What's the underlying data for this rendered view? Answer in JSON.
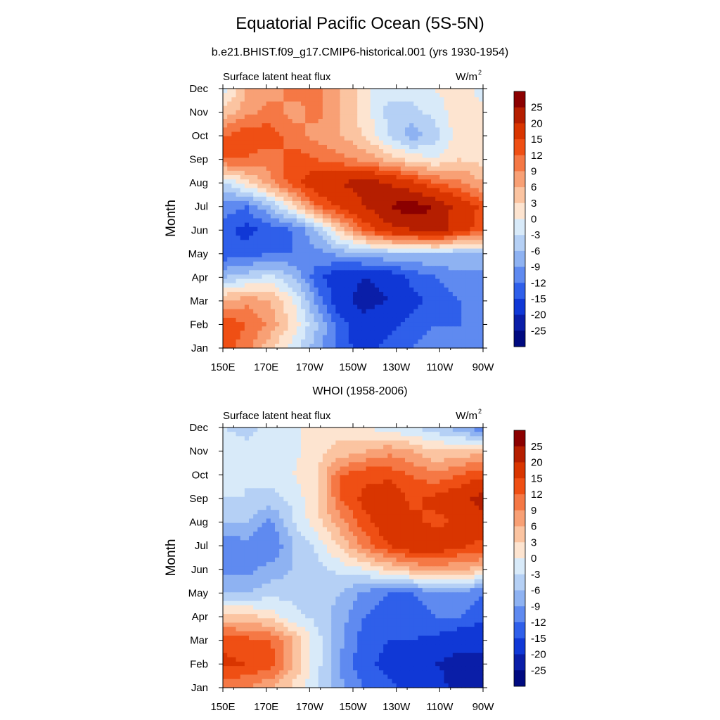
{
  "page": {
    "title": "Equatorial Pacific Ocean (5S-5N)",
    "subtitle": "b.e21.BHIST.f09_g17.CMIP6-historical.001 (yrs 1930-1954)"
  },
  "colorbar": {
    "levels": [
      "25",
      "20",
      "15",
      "12",
      "9",
      "6",
      "3",
      "0",
      "-3",
      "-6",
      "-9",
      "-12",
      "-15",
      "-20",
      "-25"
    ],
    "colors": [
      "#8b0000",
      "#b51e00",
      "#d93500",
      "#ef4f14",
      "#f57845",
      "#f8a075",
      "#fbc4a1",
      "#fde4d0",
      "#d8eaf9",
      "#b5d0f5",
      "#8eb2f2",
      "#5f8af0",
      "#2f5fea",
      "#1038d6",
      "#0a1ea8",
      "#000a80"
    ]
  },
  "chart_data": [
    {
      "type": "heatmap",
      "subtitle": "",
      "left_label": "Surface latent heat flux",
      "right_label": "W/m",
      "right_label_sup": "2",
      "ylabel": "Month",
      "x_ticks": [
        "150E",
        "170E",
        "170W",
        "150W",
        "130W",
        "110W",
        "90W"
      ],
      "y_ticks": [
        "Jan",
        "Feb",
        "Mar",
        "Apr",
        "May",
        "Jun",
        "Jul",
        "Aug",
        "Sep",
        "Oct",
        "Nov",
        "Dec"
      ],
      "x_range": [
        "150E",
        "90W"
      ],
      "y_range": [
        "Jan",
        "Dec"
      ],
      "values": [
        [
          14,
          10,
          4,
          -2,
          -8,
          -14,
          -16,
          -14,
          -12,
          -10,
          -10,
          -12
        ],
        [
          15,
          12,
          8,
          2,
          -6,
          -14,
          -18,
          -16,
          -14,
          -12,
          -12,
          -12
        ],
        [
          6,
          8,
          6,
          0,
          -10,
          -18,
          -22,
          -20,
          -16,
          -14,
          -12,
          -12
        ],
        [
          -6,
          -4,
          -2,
          -6,
          -14,
          -18,
          -20,
          -18,
          -14,
          -12,
          -10,
          -10
        ],
        [
          -14,
          -14,
          -12,
          -12,
          -10,
          -8,
          -6,
          -6,
          -6,
          -6,
          -6,
          -6
        ],
        [
          -14,
          -16,
          -14,
          -12,
          -6,
          4,
          12,
          18,
          20,
          24,
          16,
          14
        ],
        [
          -10,
          -12,
          -6,
          2,
          12,
          16,
          20,
          25,
          28,
          24,
          18,
          14
        ],
        [
          -4,
          2,
          8,
          14,
          18,
          20,
          22,
          20,
          16,
          12,
          10,
          6
        ],
        [
          12,
          12,
          10,
          14,
          12,
          10,
          8,
          5,
          2,
          0,
          3,
          2
        ],
        [
          12,
          14,
          14,
          10,
          8,
          6,
          3,
          -3,
          -8,
          -4,
          2,
          2
        ],
        [
          4,
          8,
          10,
          8,
          10,
          6,
          1,
          -4,
          -4,
          -2,
          2,
          1
        ],
        [
          -2,
          6,
          8,
          10,
          10,
          6,
          1,
          -2,
          -2,
          0,
          3,
          -2
        ]
      ]
    },
    {
      "type": "heatmap",
      "subtitle": "WHOI (1958-2006)",
      "left_label": "Surface latent heat flux",
      "right_label": "W/m",
      "right_label_sup": "2",
      "ylabel": "Month",
      "x_ticks": [
        "150E",
        "170E",
        "170W",
        "150W",
        "130W",
        "110W",
        "90W"
      ],
      "y_ticks": [
        "Jan",
        "Feb",
        "Mar",
        "Apr",
        "May",
        "Jun",
        "Jul",
        "Aug",
        "Sep",
        "Oct",
        "Nov",
        "Dec"
      ],
      "x_range": [
        "150E",
        "90W"
      ],
      "y_range": [
        "Jan",
        "Dec"
      ],
      "values": [
        [
          10,
          9,
          6,
          2,
          -3,
          -8,
          -12,
          -14,
          -16,
          -18,
          -22,
          -25
        ],
        [
          16,
          15,
          14,
          6,
          -2,
          -10,
          -14,
          -16,
          -18,
          -20,
          -22,
          -22
        ],
        [
          14,
          13,
          12,
          6,
          -2,
          -8,
          -14,
          -15,
          -15,
          -16,
          -18,
          -18
        ],
        [
          4,
          4,
          2,
          -2,
          -4,
          -8,
          -12,
          -14,
          -14,
          -12,
          -12,
          -14
        ],
        [
          -6,
          -6,
          -4,
          -4,
          -4,
          -6,
          -10,
          -12,
          -12,
          -10,
          -10,
          -12
        ],
        [
          -10,
          -10,
          -8,
          -6,
          -4,
          -2,
          0,
          3,
          6,
          8,
          6,
          5
        ],
        [
          -12,
          -10,
          -12,
          -6,
          -2,
          4,
          10,
          15,
          18,
          18,
          16,
          14
        ],
        [
          -6,
          -6,
          -10,
          -3,
          2,
          8,
          14,
          18,
          16,
          14,
          16,
          18
        ],
        [
          -3,
          -3,
          -4,
          -2,
          3,
          12,
          16,
          18,
          14,
          16,
          18,
          22
        ],
        [
          -1,
          -3,
          -2,
          0,
          3,
          12,
          14,
          14,
          12,
          10,
          12,
          14
        ],
        [
          -1,
          -2,
          -1,
          -1,
          2,
          4,
          6,
          8,
          6,
          3,
          4,
          5
        ],
        [
          -3,
          -4,
          -2,
          -1,
          2,
          2,
          0,
          -2,
          -3,
          -5,
          -8,
          -12
        ]
      ]
    }
  ]
}
